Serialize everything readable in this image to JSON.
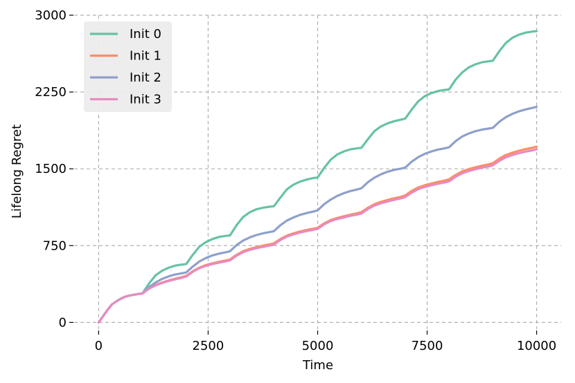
{
  "chart_data": {
    "type": "line",
    "title": "",
    "xlabel": "Time",
    "ylabel": "Lifelong Regret",
    "xlim": [
      -560,
      10560
    ],
    "ylim": [
      -65,
      3000
    ],
    "xticks": [
      0,
      2500,
      5000,
      7500,
      10000
    ],
    "yticks": [
      0,
      750,
      1500,
      2250,
      3000
    ],
    "grid": true,
    "legend_position": "top-left",
    "series": [
      {
        "name": "Init 0",
        "color": "#66c2a5",
        "x": [
          0,
          100,
          200,
          300,
          400,
          500,
          600,
          700,
          800,
          900,
          1000,
          1150,
          1300,
          1450,
          1600,
          1750,
          1900,
          2000,
          2150,
          2300,
          2450,
          2600,
          2750,
          2900,
          3000,
          3150,
          3300,
          3450,
          3600,
          3750,
          3900,
          4000,
          4150,
          4300,
          4450,
          4600,
          4750,
          4900,
          5000,
          5150,
          5300,
          5450,
          5600,
          5750,
          5900,
          6000,
          6150,
          6300,
          6450,
          6600,
          6750,
          6900,
          7000,
          7150,
          7300,
          7450,
          7600,
          7750,
          7900,
          8000,
          8150,
          8300,
          8450,
          8600,
          8750,
          8900,
          9000,
          9150,
          9300,
          9450,
          9600,
          9750,
          9900,
          10000
        ],
        "y": [
          0,
          60,
          120,
          175,
          205,
          230,
          250,
          262,
          270,
          277,
          283,
          380,
          460,
          505,
          535,
          555,
          565,
          570,
          660,
          740,
          785,
          815,
          835,
          845,
          850,
          950,
          1030,
          1075,
          1105,
          1120,
          1130,
          1135,
          1220,
          1300,
          1345,
          1375,
          1395,
          1410,
          1415,
          1510,
          1590,
          1640,
          1670,
          1690,
          1700,
          1705,
          1790,
          1870,
          1915,
          1945,
          1965,
          1980,
          1990,
          2080,
          2160,
          2210,
          2240,
          2260,
          2270,
          2275,
          2370,
          2440,
          2490,
          2520,
          2540,
          2550,
          2555,
          2650,
          2730,
          2780,
          2810,
          2830,
          2840,
          2845
        ]
      },
      {
        "name": "Init 1",
        "color": "#fc8d62",
        "x": [
          0,
          100,
          200,
          300,
          400,
          500,
          600,
          700,
          800,
          900,
          1000,
          1150,
          1300,
          1450,
          1600,
          1750,
          1900,
          2000,
          2150,
          2300,
          2450,
          2600,
          2750,
          2900,
          3000,
          3150,
          3300,
          3450,
          3600,
          3750,
          3900,
          4000,
          4150,
          4300,
          4450,
          4600,
          4750,
          4900,
          5000,
          5150,
          5300,
          5450,
          5600,
          5750,
          5900,
          6000,
          6150,
          6300,
          6450,
          6600,
          6750,
          6900,
          7000,
          7150,
          7300,
          7450,
          7600,
          7750,
          7900,
          8000,
          8150,
          8300,
          8450,
          8600,
          8750,
          8900,
          9000,
          9150,
          9300,
          9450,
          9600,
          9750,
          9900,
          10000
        ],
        "y": [
          0,
          60,
          120,
          175,
          205,
          230,
          250,
          262,
          270,
          277,
          283,
          330,
          365,
          390,
          410,
          428,
          442,
          455,
          500,
          535,
          560,
          578,
          592,
          605,
          615,
          660,
          695,
          718,
          735,
          750,
          762,
          772,
          815,
          848,
          870,
          888,
          903,
          915,
          925,
          968,
          1000,
          1020,
          1037,
          1052,
          1065,
          1077,
          1120,
          1155,
          1178,
          1196,
          1212,
          1226,
          1240,
          1285,
          1318,
          1340,
          1357,
          1372,
          1385,
          1397,
          1440,
          1475,
          1497,
          1515,
          1530,
          1543,
          1555,
          1600,
          1635,
          1658,
          1676,
          1692,
          1705,
          1715
        ]
      },
      {
        "name": "Init 2",
        "color": "#8da0cb",
        "x": [
          0,
          100,
          200,
          300,
          400,
          500,
          600,
          700,
          800,
          900,
          1000,
          1150,
          1300,
          1450,
          1600,
          1750,
          1900,
          2000,
          2150,
          2300,
          2450,
          2600,
          2750,
          2900,
          3000,
          3150,
          3300,
          3450,
          3600,
          3750,
          3900,
          4000,
          4150,
          4300,
          4450,
          4600,
          4750,
          4900,
          5000,
          5150,
          5300,
          5450,
          5600,
          5750,
          5900,
          6000,
          6150,
          6300,
          6450,
          6600,
          6750,
          6900,
          7000,
          7150,
          7300,
          7450,
          7600,
          7750,
          7900,
          8000,
          8150,
          8300,
          8450,
          8600,
          8750,
          8900,
          9000,
          9150,
          9300,
          9450,
          9600,
          9750,
          9900,
          10000
        ],
        "y": [
          0,
          60,
          120,
          175,
          205,
          230,
          250,
          262,
          270,
          277,
          283,
          345,
          390,
          425,
          450,
          468,
          480,
          488,
          545,
          595,
          630,
          655,
          672,
          685,
          695,
          755,
          800,
          830,
          853,
          870,
          882,
          890,
          950,
          995,
          1025,
          1050,
          1068,
          1082,
          1095,
          1155,
          1200,
          1235,
          1262,
          1283,
          1298,
          1310,
          1370,
          1415,
          1447,
          1472,
          1490,
          1502,
          1512,
          1570,
          1615,
          1647,
          1670,
          1688,
          1700,
          1710,
          1770,
          1815,
          1845,
          1867,
          1883,
          1893,
          1900,
          1960,
          2005,
          2037,
          2062,
          2080,
          2095,
          2105
        ]
      },
      {
        "name": "Init 3",
        "color": "#e78ac3",
        "x": [
          0,
          100,
          200,
          300,
          400,
          500,
          600,
          700,
          800,
          900,
          1000,
          1150,
          1300,
          1450,
          1600,
          1750,
          1900,
          2000,
          2150,
          2300,
          2450,
          2600,
          2750,
          2900,
          3000,
          3150,
          3300,
          3450,
          3600,
          3750,
          3900,
          4000,
          4150,
          4300,
          4450,
          4600,
          4750,
          4900,
          5000,
          5150,
          5300,
          5450,
          5600,
          5750,
          5900,
          6000,
          6150,
          6300,
          6450,
          6600,
          6750,
          6900,
          7000,
          7150,
          7300,
          7450,
          7600,
          7750,
          7900,
          8000,
          8150,
          8300,
          8450,
          8600,
          8750,
          8900,
          9000,
          9150,
          9300,
          9450,
          9600,
          9750,
          9900,
          10000
        ],
        "y": [
          0,
          60,
          120,
          175,
          205,
          230,
          250,
          262,
          270,
          277,
          283,
          330,
          362,
          386,
          405,
          422,
          436,
          448,
          495,
          530,
          553,
          570,
          584,
          596,
          606,
          652,
          686,
          708,
          724,
          738,
          750,
          760,
          805,
          838,
          860,
          877,
          892,
          904,
          914,
          958,
          990,
          1010,
          1026,
          1041,
          1053,
          1064,
          1108,
          1142,
          1164,
          1182,
          1197,
          1211,
          1224,
          1268,
          1302,
          1323,
          1340,
          1355,
          1367,
          1378,
          1422,
          1456,
          1478,
          1496,
          1511,
          1523,
          1534,
          1578,
          1612,
          1635,
          1653,
          1668,
          1680,
          1690
        ]
      }
    ]
  }
}
